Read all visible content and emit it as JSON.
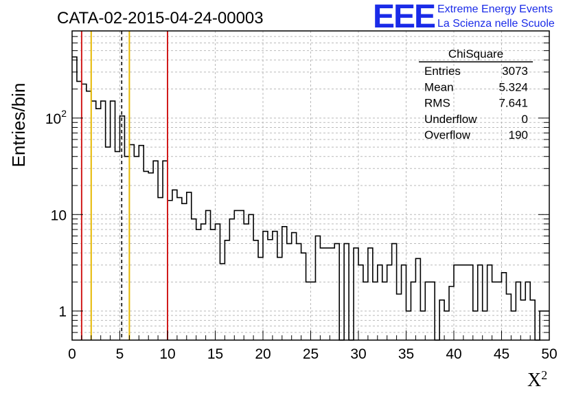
{
  "header": {
    "title": "CATA-02-2015-04-24-00003",
    "logo": "EEE",
    "logo_line1": "Extreme Energy Events",
    "logo_line2": "La Scienza nelle Scuole"
  },
  "stats_box": {
    "name": "ChiSquare",
    "rows": [
      {
        "label": "Entries",
        "value": "3073"
      },
      {
        "label": "Mean",
        "value": "5.324"
      },
      {
        "label": "RMS",
        "value": "7.641"
      },
      {
        "label": "Underflow",
        "value": "0"
      },
      {
        "label": "Overflow",
        "value": "190"
      }
    ]
  },
  "chart_data": {
    "type": "histogram",
    "title": "CATA-02-2015-04-24-00003",
    "xlabel": "X²",
    "ylabel": "Entries/bin",
    "xlim": [
      0,
      50
    ],
    "ylim": [
      0.5,
      800
    ],
    "yscale": "log",
    "grid": true,
    "bin_width": 0.5,
    "x_ticks": [
      "0",
      "5",
      "10",
      "15",
      "20",
      "25",
      "30",
      "35",
      "40",
      "45",
      "50"
    ],
    "y_ticks": [
      {
        "value": 1,
        "label": "1"
      },
      {
        "value": 10,
        "label": "10"
      },
      {
        "value": 100,
        "label": "10²"
      }
    ],
    "values": [
      430,
      240,
      225,
      190,
      150,
      125,
      150,
      50,
      150,
      45,
      105,
      40,
      53,
      40,
      52,
      28,
      27,
      36,
      15,
      36,
      14,
      18,
      15,
      13,
      17,
      9,
      7,
      8,
      11,
      7,
      8,
      3.1,
      5.4,
      9,
      11,
      11,
      8,
      10,
      5.4,
      3.6,
      6.7,
      5.5,
      6.7,
      3.6,
      7.5,
      5.0,
      6.5,
      5.0,
      4,
      2,
      2,
      6,
      4.5,
      4.5,
      4.5,
      5,
      0.4,
      5,
      0.4,
      4.5,
      3,
      2,
      4.5,
      2,
      3,
      2,
      3,
      5,
      1.5,
      3,
      1,
      2,
      3.5,
      1,
      2,
      2,
      0.4,
      1.3,
      1,
      1.8,
      3,
      3,
      3,
      3,
      1,
      3,
      1,
      3,
      2,
      2,
      2.5,
      1.5,
      1,
      2,
      1.3,
      2,
      1.3,
      0.4,
      1,
      1
    ],
    "vertical_lines": [
      {
        "x": 1,
        "color": "#d11a1a",
        "style": "solid"
      },
      {
        "x": 2,
        "color": "#e6b800",
        "style": "solid"
      },
      {
        "x": 5.2,
        "color": "#000000",
        "style": "dashed"
      },
      {
        "x": 6,
        "color": "#e6b800",
        "style": "solid"
      },
      {
        "x": 10,
        "color": "#d11a1a",
        "style": "solid"
      }
    ]
  }
}
